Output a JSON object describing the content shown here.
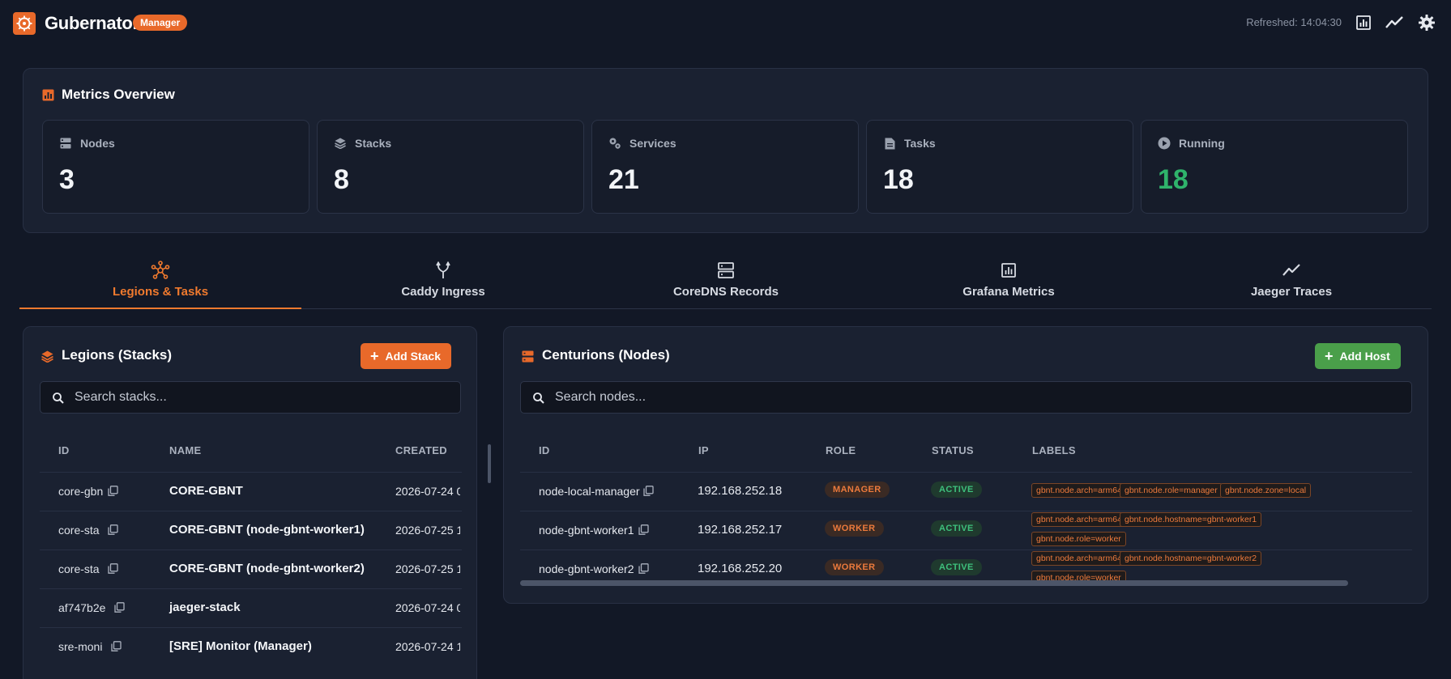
{
  "app": {
    "title": "Gubernator",
    "role_badge": "Manager",
    "refreshed": "Refreshed: 14:04:30",
    "accent": "#e8692a"
  },
  "header_icons": [
    "bar-chart-icon",
    "trend-line-icon",
    "gear-icon"
  ],
  "metrics": {
    "title": "Metrics Overview",
    "items": [
      {
        "label": "Nodes",
        "value": "3",
        "icon": "server-icon"
      },
      {
        "label": "Stacks",
        "value": "8",
        "icon": "layers-icon"
      },
      {
        "label": "Services",
        "value": "21",
        "icon": "gears-icon"
      },
      {
        "label": "Tasks",
        "value": "18",
        "icon": "document-icon"
      },
      {
        "label": "Running",
        "value": "18",
        "icon": "play-circle-icon",
        "color": "#2fb36b"
      }
    ]
  },
  "tabs": [
    {
      "label": "Legions & Tasks",
      "icon": "network-hub-icon",
      "active": true
    },
    {
      "label": "Caddy Ingress",
      "icon": "merge-arrows-icon"
    },
    {
      "label": "CoreDNS Records",
      "icon": "dns-server-icon"
    },
    {
      "label": "Grafana Metrics",
      "icon": "bar-chart-icon"
    },
    {
      "label": "Jaeger Traces",
      "icon": "trend-line-icon"
    }
  ],
  "legions": {
    "title": "Legions (Stacks)",
    "add_button": "Add Stack",
    "search_placeholder": "Search stacks...",
    "columns": [
      "ID",
      "NAME",
      "CREATED"
    ],
    "rows": [
      {
        "id": "core-gbn",
        "name": "CORE-GBNT",
        "created": "2026-07-24 0"
      },
      {
        "id": "core-sta",
        "name": "CORE-GBNT (node-gbnt-worker1)",
        "created": "2026-07-25 1"
      },
      {
        "id": "core-sta",
        "name": "CORE-GBNT (node-gbnt-worker2)",
        "created": "2026-07-25 1"
      },
      {
        "id": "af747b2e",
        "name": "jaeger-stack",
        "created": "2026-07-24 0"
      },
      {
        "id": "sre-moni",
        "name": "[SRE] Monitor (Manager)",
        "created": "2026-07-24 1"
      }
    ]
  },
  "centurions": {
    "title": "Centurions (Nodes)",
    "add_button": "Add Host",
    "search_placeholder": "Search nodes...",
    "columns": [
      "ID",
      "IP",
      "ROLE",
      "STATUS",
      "LABELS"
    ],
    "rows": [
      {
        "id": "node-local-manager",
        "ip": "192.168.252.18",
        "role": "MANAGER",
        "status": "ACTIVE",
        "labels": [
          "gbnt.node.arch=arm64",
          "gbnt.node.role=manager",
          "gbnt.node.zone=local"
        ]
      },
      {
        "id": "node-gbnt-worker1",
        "ip": "192.168.252.17",
        "role": "WORKER",
        "status": "ACTIVE",
        "labels": [
          "gbnt.node.arch=arm64",
          "gbnt.node.hostname=gbnt-worker1",
          "gbnt.node.role=worker"
        ]
      },
      {
        "id": "node-gbnt-worker2",
        "ip": "192.168.252.20",
        "role": "WORKER",
        "status": "ACTIVE",
        "labels": [
          "gbnt.node.arch=arm64",
          "gbnt.node.hostname=gbnt-worker2",
          "gbnt.node.role=worker"
        ]
      }
    ]
  }
}
